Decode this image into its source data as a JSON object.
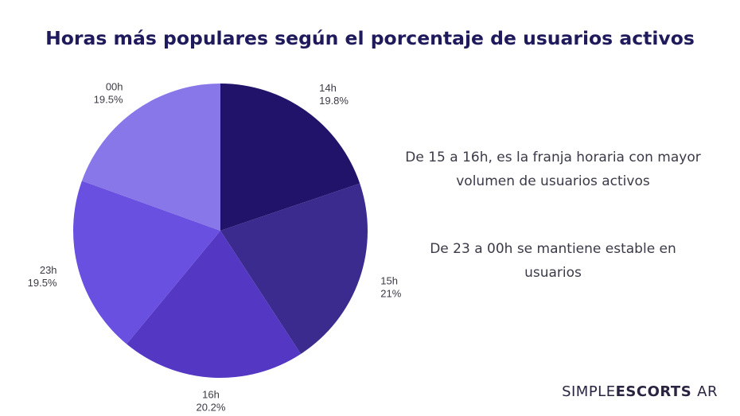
{
  "chart_data": {
    "type": "pie",
    "title": "Horas más populares según el porcentaje de usuarios activos",
    "slices": [
      {
        "label": "14h",
        "value": 19.8,
        "value_label": "19.8%",
        "color": "#22136a"
      },
      {
        "label": "15h",
        "value": 21.0,
        "value_label": "21%",
        "color": "#3b2b8e"
      },
      {
        "label": "16h",
        "value": 20.2,
        "value_label": "20.2%",
        "color": "#5437c3"
      },
      {
        "label": "23h",
        "value": 19.5,
        "value_label": "19.5%",
        "color": "#6a50e0"
      },
      {
        "label": "00h",
        "value": 19.5,
        "value_label": "19.5%",
        "color": "#8877e8"
      }
    ],
    "start": "top",
    "direction": "clockwise"
  },
  "notes": [
    "De 15 a 16h, es la franja horaria con mayor volumen de usuarios activos",
    "De 23 a 00h se mantiene estable en usuarios"
  ],
  "brand": {
    "part1": "SIMPLE",
    "part2": "ESCORTS",
    "part3": "AR"
  }
}
